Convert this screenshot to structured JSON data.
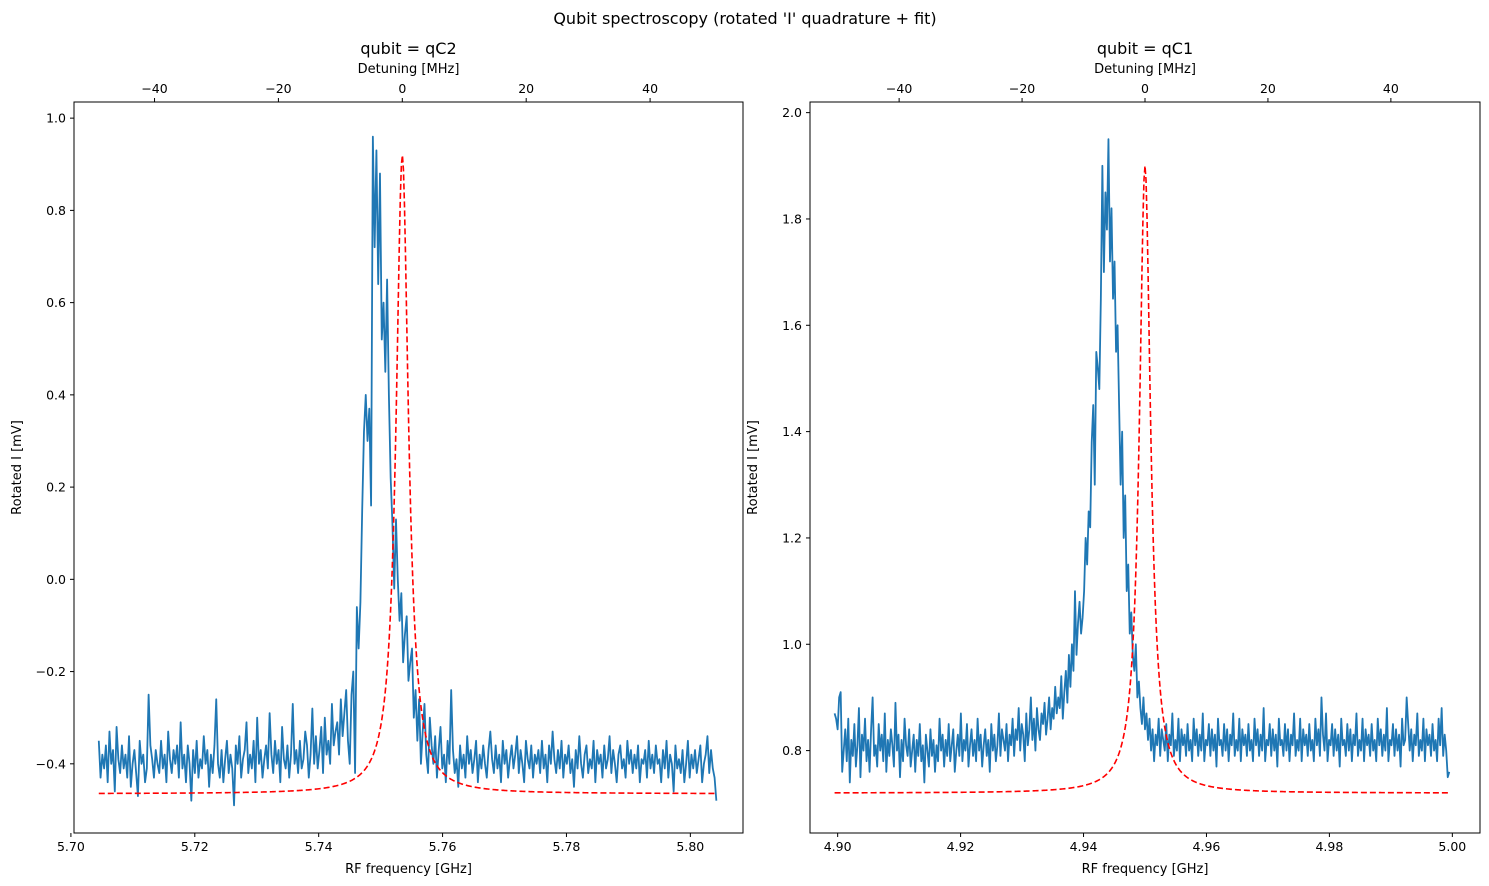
{
  "figure": {
    "suptitle": "Qubit spectroscopy (rotated 'I' quadrature + fit)"
  },
  "colors": {
    "data_line": "#1f77b4",
    "fit_line": "#ff0000",
    "axes": "#000000"
  },
  "chart_data": [
    {
      "type": "line",
      "title": "qubit = qC2",
      "xlabel": "RF frequency [GHz]",
      "ylabel": "Rotated I [mV]",
      "secondary_xlabel": "Detuning [MHz]",
      "xlim": [
        5.7005,
        5.8085
      ],
      "ylim": [
        -0.55,
        1.035
      ],
      "x_ticks": [
        5.7,
        5.72,
        5.74,
        5.76,
        5.78,
        5.8
      ],
      "x_tick_labels": [
        "5.70",
        "5.72",
        "5.74",
        "5.76",
        "5.78",
        "5.80"
      ],
      "y_ticks": [
        -0.4,
        -0.2,
        0.0,
        0.2,
        0.4,
        0.6,
        0.8,
        1.0
      ],
      "y_tick_labels": [
        "−0.4",
        "−0.2",
        "0.0",
        "0.2",
        "0.4",
        "0.6",
        "0.8",
        "1.0"
      ],
      "secondary_x_ticks": [
        -40,
        -20,
        0,
        20,
        40
      ],
      "secondary_x_tick_labels": [
        "−40",
        "−20",
        "0",
        "20",
        "40"
      ],
      "secondary_x_center_GHz": 5.7535,
      "legend": "none",
      "grid": false,
      "series": [
        {
          "style": "solid",
          "x_start": 5.7045,
          "x_end": 5.8042,
          "values": [
            -0.35,
            -0.43,
            -0.38,
            -0.41,
            -0.36,
            -0.44,
            -0.33,
            -0.4,
            -0.37,
            -0.46,
            -0.32,
            -0.39,
            -0.42,
            -0.36,
            -0.41,
            -0.38,
            -0.43,
            -0.34,
            -0.45,
            -0.4,
            -0.37,
            -0.42,
            -0.47,
            -0.35,
            -0.4,
            -0.38,
            -0.44,
            -0.41,
            -0.25,
            -0.36,
            -0.39,
            -0.43,
            -0.37,
            -0.4,
            -0.42,
            -0.35,
            -0.41,
            -0.38,
            -0.44,
            -0.33,
            -0.39,
            -0.42,
            -0.37,
            -0.4,
            -0.36,
            -0.43,
            -0.31,
            -0.41,
            -0.38,
            -0.44,
            -0.36,
            -0.4,
            -0.48,
            -0.37,
            -0.42,
            -0.35,
            -0.43,
            -0.39,
            -0.41,
            -0.34,
            -0.4,
            -0.37,
            -0.45,
            -0.38,
            -0.42,
            -0.36,
            -0.26,
            -0.4,
            -0.43,
            -0.37,
            -0.44,
            -0.39,
            -0.35,
            -0.42,
            -0.38,
            -0.41,
            -0.49,
            -0.36,
            -0.4,
            -0.34,
            -0.43,
            -0.39,
            -0.37,
            -0.31,
            -0.42,
            -0.38,
            -0.41,
            -0.35,
            -0.44,
            -0.3,
            -0.4,
            -0.37,
            -0.43,
            -0.39,
            -0.36,
            -0.41,
            -0.29,
            -0.38,
            -0.42,
            -0.35,
            -0.4,
            -0.37,
            -0.44,
            -0.32,
            -0.39,
            -0.41,
            -0.36,
            -0.43,
            -0.38,
            -0.27,
            -0.4,
            -0.37,
            -0.42,
            -0.35,
            -0.41,
            -0.39,
            -0.33,
            -0.36,
            -0.43,
            -0.38,
            -0.28,
            -0.4,
            -0.34,
            -0.41,
            -0.37,
            -0.32,
            -0.42,
            -0.3,
            -0.38,
            -0.35,
            -0.4,
            -0.27,
            -0.36,
            -0.33,
            -0.31,
            -0.38,
            -0.26,
            -0.34,
            -0.29,
            -0.24,
            -0.35,
            -0.4,
            -0.25,
            -0.2,
            -0.42,
            -0.06,
            -0.15,
            -0.05,
            0.15,
            0.32,
            0.4,
            0.3,
            0.37,
            0.16,
            0.96,
            0.72,
            0.93,
            0.64,
            0.88,
            0.52,
            0.6,
            0.45,
            0.65,
            0.4,
            0.22,
            0.12,
            -0.02,
            0.13,
            0.0,
            -0.09,
            -0.03,
            -0.18,
            -0.12,
            -0.08,
            -0.22,
            -0.18,
            -0.15,
            -0.3,
            -0.24,
            -0.35,
            -0.26,
            -0.4,
            -0.33,
            -0.27,
            -0.38,
            -0.42,
            -0.3,
            -0.36,
            -0.4,
            -0.34,
            -0.43,
            -0.37,
            -0.32,
            -0.41,
            -0.38,
            -0.44,
            -0.35,
            -0.4,
            -0.24,
            -0.37,
            -0.42,
            -0.39,
            -0.45,
            -0.36,
            -0.41,
            -0.38,
            -0.43,
            -0.34,
            -0.4,
            -0.37,
            -0.42,
            -0.39,
            -0.35,
            -0.44,
            -0.38,
            -0.41,
            -0.36,
            -0.4,
            -0.43,
            -0.37,
            -0.33,
            -0.39,
            -0.42,
            -0.36,
            -0.41,
            -0.38,
            -0.44,
            -0.35,
            -0.4,
            -0.37,
            -0.43,
            -0.39,
            -0.36,
            -0.41,
            -0.38,
            -0.34,
            -0.42,
            -0.37,
            -0.4,
            -0.44,
            -0.35,
            -0.39,
            -0.41,
            -0.36,
            -0.43,
            -0.38,
            -0.4,
            -0.37,
            -0.42,
            -0.35,
            -0.41,
            -0.38,
            -0.44,
            -0.36,
            -0.4,
            -0.33,
            -0.39,
            -0.42,
            -0.37,
            -0.41,
            -0.35,
            -0.43,
            -0.38,
            -0.4,
            -0.36,
            -0.42,
            -0.39,
            -0.45,
            -0.37,
            -0.41,
            -0.34,
            -0.4,
            -0.43,
            -0.38,
            -0.36,
            -0.42,
            -0.39,
            -0.41,
            -0.35,
            -0.44,
            -0.37,
            -0.4,
            -0.38,
            -0.43,
            -0.36,
            -0.41,
            -0.39,
            -0.34,
            -0.42,
            -0.37,
            -0.4,
            -0.44,
            -0.38,
            -0.36,
            -0.41,
            -0.39,
            -0.43,
            -0.35,
            -0.4,
            -0.37,
            -0.42,
            -0.38,
            -0.41,
            -0.36,
            -0.44,
            -0.39,
            -0.4,
            -0.37,
            -0.43,
            -0.35,
            -0.41,
            -0.38,
            -0.42,
            -0.36,
            -0.4,
            -0.39,
            -0.44,
            -0.37,
            -0.41,
            -0.35,
            -0.43,
            -0.38,
            -0.4,
            -0.46,
            -0.36,
            -0.41,
            -0.39,
            -0.42,
            -0.37,
            -0.44,
            -0.4,
            -0.35,
            -0.43,
            -0.38,
            -0.41,
            -0.37,
            -0.42,
            -0.39,
            -0.36,
            -0.44,
            -0.4,
            -0.38,
            -0.34,
            -0.42,
            -0.37,
            -0.41,
            -0.43,
            -0.48
          ]
        },
        {
          "style": "dashed",
          "model": "lorentzian",
          "offset": -0.465,
          "amplitude": 1.385,
          "center": 5.7535,
          "hwhm": 0.0012,
          "x_start": 5.7045,
          "x_end": 5.8042
        }
      ]
    },
    {
      "type": "line",
      "title": "qubit = qC1",
      "xlabel": "RF frequency [GHz]",
      "ylabel": "Rotated I [mV]",
      "secondary_xlabel": "Detuning [MHz]",
      "xlim": [
        4.8955,
        5.0045
      ],
      "ylim": [
        0.645,
        2.02
      ],
      "x_ticks": [
        4.9,
        4.92,
        4.94,
        4.96,
        4.98,
        5.0
      ],
      "x_tick_labels": [
        "4.90",
        "4.92",
        "4.94",
        "4.96",
        "4.98",
        "5.00"
      ],
      "y_ticks": [
        0.8,
        1.0,
        1.2,
        1.4,
        1.6,
        1.8,
        2.0
      ],
      "y_tick_labels": [
        "0.8",
        "1.0",
        "1.2",
        "1.4",
        "1.6",
        "1.8",
        "2.0"
      ],
      "secondary_x_ticks": [
        -40,
        -20,
        0,
        20,
        40
      ],
      "secondary_x_tick_labels": [
        "−40",
        "−20",
        "0",
        "20",
        "40"
      ],
      "secondary_x_center_GHz": 4.95,
      "legend": "none",
      "grid": false,
      "series": [
        {
          "style": "solid",
          "x_start": 4.8995,
          "x_end": 4.9995,
          "values": [
            0.87,
            0.86,
            0.84,
            0.9,
            0.91,
            0.76,
            0.8,
            0.84,
            0.78,
            0.86,
            0.74,
            0.82,
            0.79,
            0.85,
            0.77,
            0.81,
            0.88,
            0.75,
            0.83,
            0.8,
            0.86,
            0.78,
            0.82,
            0.76,
            0.84,
            0.9,
            0.79,
            0.81,
            0.77,
            0.85,
            0.8,
            0.83,
            0.78,
            0.87,
            0.76,
            0.82,
            0.79,
            0.84,
            0.81,
            0.77,
            0.89,
            0.8,
            0.83,
            0.75,
            0.82,
            0.78,
            0.86,
            0.81,
            0.79,
            0.84,
            0.77,
            0.8,
            0.83,
            0.76,
            0.82,
            0.79,
            0.85,
            0.78,
            0.81,
            0.74,
            0.83,
            0.8,
            0.77,
            0.84,
            0.79,
            0.82,
            0.76,
            0.81,
            0.78,
            0.86,
            0.8,
            0.83,
            0.77,
            0.82,
            0.79,
            0.85,
            0.78,
            0.81,
            0.84,
            0.76,
            0.8,
            0.83,
            0.79,
            0.87,
            0.78,
            0.82,
            0.8,
            0.85,
            0.77,
            0.81,
            0.84,
            0.79,
            0.82,
            0.78,
            0.86,
            0.8,
            0.83,
            0.77,
            0.81,
            0.84,
            0.79,
            0.82,
            0.76,
            0.85,
            0.8,
            0.83,
            0.78,
            0.81,
            0.87,
            0.79,
            0.84,
            0.82,
            0.8,
            0.85,
            0.78,
            0.83,
            0.81,
            0.86,
            0.79,
            0.84,
            0.82,
            0.88,
            0.8,
            0.85,
            0.83,
            0.78,
            0.87,
            0.81,
            0.84,
            0.9,
            0.82,
            0.86,
            0.8,
            0.88,
            0.84,
            0.82,
            0.87,
            0.85,
            0.89,
            0.83,
            0.86,
            0.9,
            0.84,
            0.88,
            0.86,
            0.92,
            0.87,
            0.9,
            0.88,
            0.94,
            0.86,
            0.91,
            0.95,
            0.89,
            0.98,
            0.92,
            1.0,
            0.95,
            1.1,
            0.98,
            1.04,
            1.08,
            1.02,
            1.05,
            1.1,
            1.2,
            1.15,
            1.25,
            1.22,
            1.38,
            1.45,
            1.3,
            1.55,
            1.52,
            1.48,
            1.65,
            1.9,
            1.7,
            1.85,
            1.78,
            1.95,
            1.72,
            1.82,
            1.65,
            1.72,
            1.55,
            1.6,
            1.45,
            1.3,
            1.4,
            1.2,
            1.28,
            1.1,
            1.15,
            1.02,
            1.06,
            0.98,
            0.95,
            1.0,
            0.9,
            0.93,
            0.88,
            0.85,
            0.9,
            0.84,
            0.87,
            0.82,
            0.86,
            0.8,
            0.84,
            0.78,
            0.83,
            0.81,
            0.86,
            0.79,
            0.84,
            0.82,
            0.8,
            0.85,
            0.78,
            0.83,
            0.81,
            0.87,
            0.79,
            0.82,
            0.8,
            0.86,
            0.78,
            0.84,
            0.81,
            0.83,
            0.79,
            0.85,
            0.8,
            0.82,
            0.78,
            0.86,
            0.81,
            0.84,
            0.79,
            0.83,
            0.8,
            0.87,
            0.78,
            0.82,
            0.81,
            0.85,
            0.79,
            0.84,
            0.8,
            0.83,
            0.77,
            0.86,
            0.81,
            0.82,
            0.79,
            0.85,
            0.8,
            0.84,
            0.78,
            0.83,
            0.81,
            0.87,
            0.79,
            0.82,
            0.8,
            0.86,
            0.78,
            0.84,
            0.81,
            0.83,
            0.79,
            0.85,
            0.8,
            0.82,
            0.78,
            0.86,
            0.81,
            0.84,
            0.79,
            0.83,
            0.8,
            0.88,
            0.78,
            0.82,
            0.81,
            0.85,
            0.79,
            0.84,
            0.8,
            0.83,
            0.77,
            0.86,
            0.81,
            0.82,
            0.79,
            0.85,
            0.8,
            0.84,
            0.78,
            0.83,
            0.81,
            0.87,
            0.79,
            0.82,
            0.8,
            0.86,
            0.78,
            0.84,
            0.81,
            0.83,
            0.79,
            0.85,
            0.8,
            0.82,
            0.78,
            0.86,
            0.81,
            0.84,
            0.79,
            0.9,
            0.83,
            0.8,
            0.87,
            0.78,
            0.82,
            0.81,
            0.85,
            0.79,
            0.84,
            0.8,
            0.83,
            0.77,
            0.86,
            0.81,
            0.82,
            0.79,
            0.85,
            0.8,
            0.84,
            0.78,
            0.83,
            0.81,
            0.87,
            0.79,
            0.82,
            0.8,
            0.86,
            0.78,
            0.84,
            0.81,
            0.83,
            0.79,
            0.85,
            0.8,
            0.82,
            0.78,
            0.86,
            0.81,
            0.84,
            0.79,
            0.83,
            0.8,
            0.88,
            0.78,
            0.82,
            0.81,
            0.85,
            0.79,
            0.84,
            0.8,
            0.83,
            0.77,
            0.86,
            0.81,
            0.82,
            0.9,
            0.85,
            0.8,
            0.84,
            0.78,
            0.83,
            0.81,
            0.87,
            0.79,
            0.82,
            0.8,
            0.86,
            0.78,
            0.84,
            0.81,
            0.83,
            0.79,
            0.85,
            0.8,
            0.82,
            0.78,
            0.86,
            0.81,
            0.88,
            0.79,
            0.83,
            0.8,
            0.75,
            0.76
          ]
        },
        {
          "style": "dashed",
          "model": "lorentzian",
          "offset": 0.72,
          "amplitude": 1.18,
          "center": 4.95,
          "hwhm": 0.0011,
          "x_start": 4.8995,
          "x_end": 4.9995
        }
      ]
    }
  ]
}
